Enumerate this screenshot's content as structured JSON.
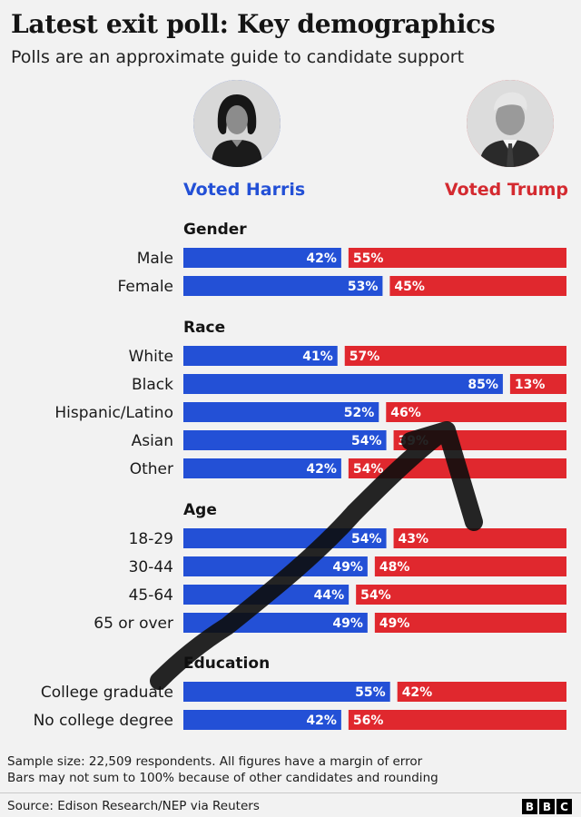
{
  "header": {
    "title": "Latest exit poll: Key demographics",
    "subtitle": "Polls are an approximate guide to candidate support"
  },
  "candidates": {
    "harris": {
      "label": "Voted Harris",
      "color": "#2350d6"
    },
    "trump": {
      "label": "Voted Trump",
      "color": "#e0282e"
    }
  },
  "chart_data": {
    "type": "bar",
    "orientation": "horizontal",
    "layout": "diverging",
    "series": [
      {
        "name": "Voted Harris",
        "color": "#2350d6"
      },
      {
        "name": "Voted Trump",
        "color": "#e0282e"
      }
    ],
    "groups": [
      {
        "name": "Gender",
        "rows": [
          {
            "label": "Male",
            "harris": 42,
            "trump": 55,
            "harris_label": "42%",
            "trump_label": "55%"
          },
          {
            "label": "Female",
            "harris": 53,
            "trump": 45,
            "harris_label": "53%",
            "trump_label": "45%"
          }
        ]
      },
      {
        "name": "Race",
        "rows": [
          {
            "label": "White",
            "harris": 41,
            "trump": 57,
            "harris_label": "41%",
            "trump_label": "57%"
          },
          {
            "label": "Black",
            "harris": 85,
            "trump": 13,
            "harris_label": "85%",
            "trump_label": "13%"
          },
          {
            "label": "Hispanic/Latino",
            "harris": 52,
            "trump": 46,
            "harris_label": "52%",
            "trump_label": "46%"
          },
          {
            "label": "Asian",
            "harris": 54,
            "trump": 39,
            "harris_label": "54%",
            "trump_label": "39%"
          },
          {
            "label": "Other",
            "harris": 42,
            "trump": 54,
            "harris_label": "42%",
            "trump_label": "54%"
          }
        ]
      },
      {
        "name": "Age",
        "rows": [
          {
            "label": "18-29",
            "harris": 54,
            "trump": 43,
            "harris_label": "54%",
            "trump_label": "43%"
          },
          {
            "label": "30-44",
            "harris": 49,
            "trump": 48,
            "harris_label": "49%",
            "trump_label": "48%"
          },
          {
            "label": "45-64",
            "harris": 44,
            "trump": 54,
            "harris_label": "44%",
            "trump_label": "54%"
          },
          {
            "label": "65 or over",
            "harris": 49,
            "trump": 49,
            "harris_label": "49%",
            "trump_label": "49%"
          }
        ]
      },
      {
        "name": "Education",
        "rows": [
          {
            "label": "College graduate",
            "harris": 55,
            "trump": 42,
            "harris_label": "55%",
            "trump_label": "42%"
          },
          {
            "label": "No college degree",
            "harris": 42,
            "trump": 56,
            "harris_label": "42%",
            "trump_label": "56%"
          }
        ]
      }
    ]
  },
  "footer": {
    "note1": "Sample size: 22,509 respondents. All figures have a margin of error",
    "note2": "Bars may not sum to 100% because of other candidates and rounding",
    "source": "Source: Edison Research/NEP via Reuters",
    "logo": [
      "B",
      "B",
      "C"
    ]
  }
}
